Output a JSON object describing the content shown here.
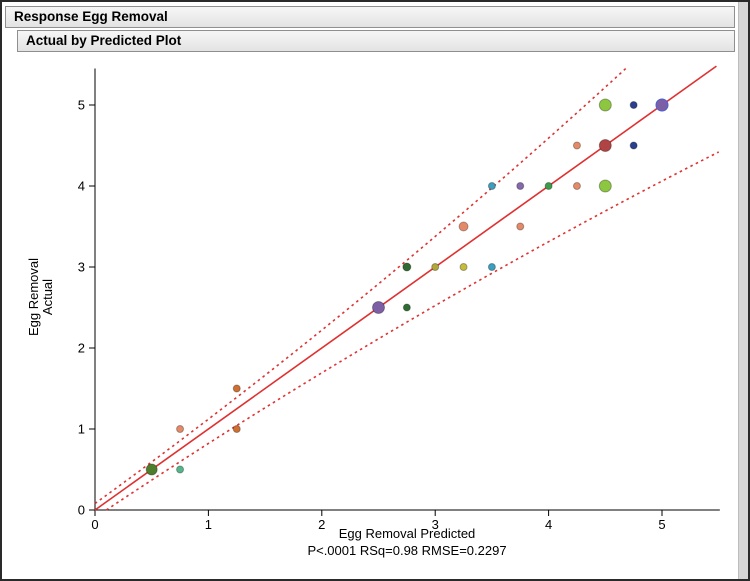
{
  "headers": {
    "response_title": "Response Egg Removal",
    "plot_title": "Actual by Predicted Plot"
  },
  "chart_data": {
    "type": "scatter",
    "title": "Actual by Predicted Plot",
    "xlabel": "Egg Removal Predicted",
    "ylabel": "Egg Removal Actual",
    "ylabel_lines": [
      "Egg Removal",
      "Actual"
    ],
    "caption": "P<.0001 RSq=0.98 RMSE=0.2297",
    "stats": {
      "p_value": "<.0001",
      "rsq": "0.98",
      "rmse": "0.2297"
    },
    "xlim": [
      0,
      5.51
    ],
    "ylim": [
      0,
      5.45
    ],
    "xticks": [
      0,
      1,
      2,
      3,
      4,
      5
    ],
    "yticks": [
      0,
      1,
      2,
      3,
      4,
      5
    ],
    "grid": false,
    "fit_line": {
      "color": "#e03131",
      "from": [
        0,
        0
      ],
      "to": [
        5.48,
        5.48
      ]
    },
    "confidence_bands": {
      "color": "#e03131",
      "style": "dotted",
      "upper": {
        "start": [
          0,
          0.08
        ],
        "ctrl": [
          2.34,
          2.45
        ],
        "end": [
          4.68,
          5.45
        ]
      },
      "lower": {
        "start": [
          0.1,
          0.0
        ],
        "ctrl": [
          2.75,
          2.47
        ],
        "end": [
          5.5,
          4.42
        ]
      }
    },
    "points": [
      {
        "x": 0.5,
        "y": 0.5,
        "color": "#4e7e2c",
        "size": 5.5
      },
      {
        "x": 0.75,
        "y": 0.5,
        "color": "#53b68b",
        "size": 3.5
      },
      {
        "x": 0.75,
        "y": 1.0,
        "color": "#e58a68",
        "size": 3.5
      },
      {
        "x": 1.25,
        "y": 1.0,
        "color": "#cf7030",
        "size": 3.5
      },
      {
        "x": 1.25,
        "y": 1.5,
        "color": "#cf7030",
        "size": 3.5
      },
      {
        "x": 2.5,
        "y": 2.5,
        "color": "#7d5fa6",
        "size": 6
      },
      {
        "x": 2.75,
        "y": 2.5,
        "color": "#2f6b33",
        "size": 3.5
      },
      {
        "x": 2.75,
        "y": 3.0,
        "color": "#2f6b33",
        "size": 4
      },
      {
        "x": 3.0,
        "y": 3.0,
        "color": "#b0a83a",
        "size": 3.5
      },
      {
        "x": 3.25,
        "y": 3.0,
        "color": "#c6bc3c",
        "size": 3.5
      },
      {
        "x": 3.25,
        "y": 3.5,
        "color": "#e58a68",
        "size": 4.5
      },
      {
        "x": 3.5,
        "y": 3.0,
        "color": "#3b9fc0",
        "size": 3.5
      },
      {
        "x": 3.5,
        "y": 4.0,
        "color": "#3b9fc0",
        "size": 3.5
      },
      {
        "x": 3.75,
        "y": 3.5,
        "color": "#e58a68",
        "size": 3.5
      },
      {
        "x": 3.75,
        "y": 4.0,
        "color": "#8568ae",
        "size": 3.5
      },
      {
        "x": 4.0,
        "y": 4.0,
        "color": "#3d9c4b",
        "size": 3.5
      },
      {
        "x": 4.25,
        "y": 4.0,
        "color": "#e58a68",
        "size": 3.5
      },
      {
        "x": 4.25,
        "y": 4.5,
        "color": "#e58a68",
        "size": 3.5
      },
      {
        "x": 4.5,
        "y": 4.0,
        "color": "#8dc63f",
        "size": 6
      },
      {
        "x": 4.5,
        "y": 4.5,
        "color": "#b04343",
        "size": 6
      },
      {
        "x": 4.5,
        "y": 5.0,
        "color": "#8dc63f",
        "size": 6
      },
      {
        "x": 4.75,
        "y": 4.5,
        "color": "#2b3f8e",
        "size": 3.5
      },
      {
        "x": 4.75,
        "y": 5.0,
        "color": "#2b3f8e",
        "size": 3.5
      },
      {
        "x": 5.0,
        "y": 5.0,
        "color": "#7d5fa6",
        "size": 6,
        "stroke": "#4a5fd0"
      }
    ]
  }
}
